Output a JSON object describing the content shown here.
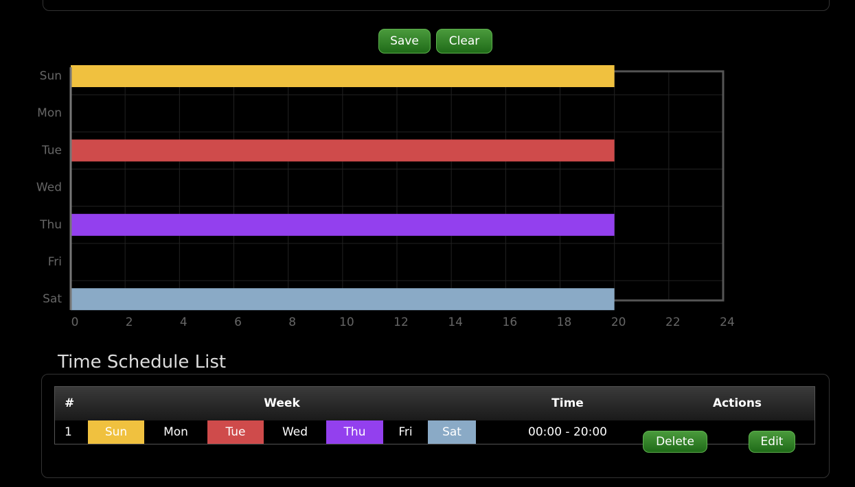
{
  "toolbar": {
    "buttons": [
      "Save",
      "Clear"
    ]
  },
  "chart_data": {
    "type": "hbar",
    "categories": [
      "Sun",
      "Mon",
      "Tue",
      "Wed",
      "Thu",
      "Fri",
      "Sat"
    ],
    "values": [
      20,
      null,
      20,
      null,
      20,
      null,
      20
    ],
    "colors": [
      "#f0c13f",
      null,
      "#cf4b4b",
      null,
      "#9340ee",
      null,
      "#8aaac6"
    ],
    "xlim": [
      0,
      24
    ],
    "xticks": [
      0,
      2,
      4,
      6,
      8,
      10,
      12,
      14,
      16,
      18,
      20,
      22,
      24
    ],
    "grid": true
  },
  "schedule": {
    "title": "Time Schedule List",
    "table": {
      "headers": [
        "#",
        "Week",
        "Time",
        "Actions"
      ],
      "rows": [
        {
          "index": 1,
          "days": [
            "Sun",
            "Mon",
            "Tue",
            "Wed",
            "Thu",
            "Fri",
            "Sat"
          ],
          "time": "00:00 - 20:00",
          "actions": [
            "Delete",
            "Edit"
          ]
        }
      ]
    }
  }
}
